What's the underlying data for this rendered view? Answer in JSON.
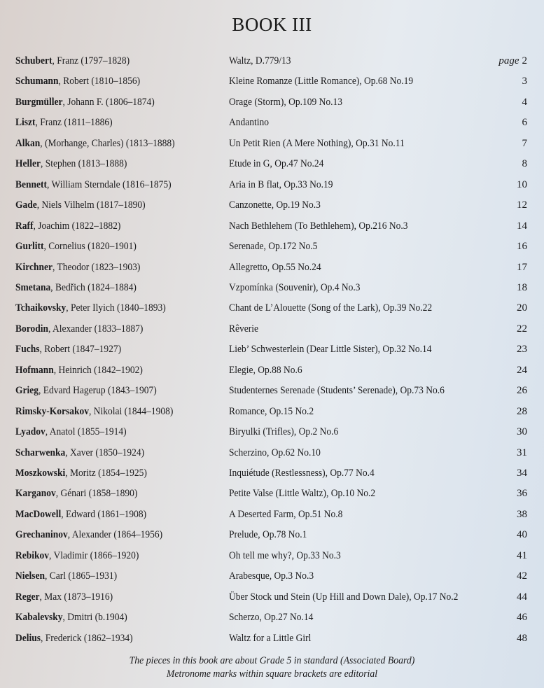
{
  "title": "BOOK III",
  "page_label": "page",
  "entries": [
    {
      "surname": "Schubert",
      "rest": "Franz (1797–1828)",
      "piece": "Waltz, D.779/13",
      "page": "2"
    },
    {
      "surname": "Schumann",
      "rest": "Robert (1810–1856)",
      "piece": "Kleine Romanze (Little Romance), Op.68 No.19",
      "page": "3"
    },
    {
      "surname": "Burgmüller",
      "rest": "Johann F. (1806–1874)",
      "piece": "Orage (Storm), Op.109 No.13",
      "page": "4"
    },
    {
      "surname": "Liszt",
      "rest": "Franz (1811–1886)",
      "piece": "Andantino",
      "page": "6"
    },
    {
      "surname": "Alkan",
      "rest": "(Morhange, Charles) (1813–1888)",
      "piece": "Un Petit Rien (A Mere Nothing), Op.31 No.11",
      "page": "7"
    },
    {
      "surname": "Heller",
      "rest": "Stephen (1813–1888)",
      "piece": "Etude in G, Op.47 No.24",
      "page": "8"
    },
    {
      "surname": "Bennett",
      "rest": "William Sterndale (1816–1875)",
      "piece": "Aria in B flat, Op.33 No.19",
      "page": "10"
    },
    {
      "surname": "Gade",
      "rest": "Niels Vilhelm (1817–1890)",
      "piece": "Canzonette, Op.19 No.3",
      "page": "12"
    },
    {
      "surname": "Raff",
      "rest": "Joachim (1822–1882)",
      "piece": "Nach Bethlehem (To Bethlehem), Op.216 No.3",
      "page": "14"
    },
    {
      "surname": "Gurlitt",
      "rest": "Cornelius (1820–1901)",
      "piece": "Serenade, Op.172 No.5",
      "page": "16"
    },
    {
      "surname": "Kirchner",
      "rest": "Theodor (1823–1903)",
      "piece": "Allegretto, Op.55 No.24",
      "page": "17"
    },
    {
      "surname": "Smetana",
      "rest": "Bedřich (1824–1884)",
      "piece": "Vzpomínka (Souvenir), Op.4 No.3",
      "page": "18"
    },
    {
      "surname": "Tchaikovsky",
      "rest": "Peter Ilyich (1840–1893)",
      "piece": "Chant de L’Alouette (Song of the Lark), Op.39 No.22",
      "page": "20"
    },
    {
      "surname": "Borodin",
      "rest": "Alexander (1833–1887)",
      "piece": "Rêverie",
      "page": "22"
    },
    {
      "surname": "Fuchs",
      "rest": "Robert (1847–1927)",
      "piece": "Lieb’ Schwesterlein (Dear Little Sister), Op.32 No.14",
      "page": "23"
    },
    {
      "surname": "Hofmann",
      "rest": "Heinrich (1842–1902)",
      "piece": "Elegie, Op.88 No.6",
      "page": "24"
    },
    {
      "surname": "Grieg",
      "rest": "Edvard Hagerup (1843–1907)",
      "piece": "Studenternes Serenade (Students’ Serenade), Op.73 No.6",
      "page": "26"
    },
    {
      "surname": "Rimsky-Korsakov",
      "rest": "Nikolai (1844–1908)",
      "piece": "Romance, Op.15 No.2",
      "page": "28"
    },
    {
      "surname": "Lyadov",
      "rest": "Anatol (1855–1914)",
      "piece": "Biryulki (Trifles), Op.2 No.6",
      "page": "30"
    },
    {
      "surname": "Scharwenka",
      "rest": "Xaver (1850–1924)",
      "piece": "Scherzino, Op.62 No.10",
      "page": "31"
    },
    {
      "surname": "Moszkowski",
      "rest": "Moritz (1854–1925)",
      "piece": "Inquiétude (Restlessness), Op.77 No.4",
      "page": "34"
    },
    {
      "surname": "Karganov",
      "rest": "Génari (1858–1890)",
      "piece": "Petite Valse (Little Waltz), Op.10 No.2",
      "page": "36"
    },
    {
      "surname": "MacDowell",
      "rest": "Edward (1861–1908)",
      "piece": "A Deserted Farm, Op.51 No.8",
      "page": "38"
    },
    {
      "surname": "Grechaninov",
      "rest": "Alexander (1864–1956)",
      "piece": "Prelude, Op.78 No.1",
      "page": "40"
    },
    {
      "surname": "Rebikov",
      "rest": "Vladimir (1866–1920)",
      "piece": "Oh tell me why?, Op.33 No.3",
      "page": "41"
    },
    {
      "surname": "Nielsen",
      "rest": "Carl (1865–1931)",
      "piece": "Arabesque, Op.3 No.3",
      "page": "42"
    },
    {
      "surname": "Reger",
      "rest": "Max (1873–1916)",
      "piece": "Über Stock und Stein (Up Hill and Down Dale), Op.17 No.2",
      "page": "44"
    },
    {
      "surname": "Kabalevsky",
      "rest": "Dmitri (b.1904)",
      "piece": "Scherzo, Op.27 No.14",
      "page": "46"
    },
    {
      "surname": "Delius",
      "rest": "Frederick (1862–1934)",
      "piece": "Waltz for a Little Girl",
      "page": "48"
    }
  ],
  "footer": {
    "line1": "The pieces in this book are about Grade 5 in standard (Associated Board)",
    "line2": "Metronome marks within square brackets are editorial"
  }
}
